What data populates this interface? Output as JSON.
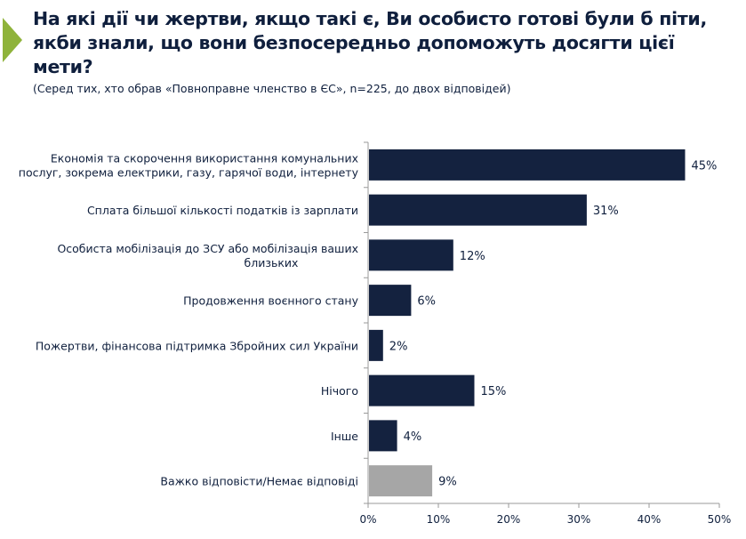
{
  "title": "На які дії чи жертви, якщо такі є, Ви особисто готові були б піти, якби знали, що вони безпосередньо допоможуть досягти цієї мети?",
  "subtitle": "(Серед тих, хто обрав «Повноправне членство в ЄС», n=225, до двох відповідей)",
  "chart_data": {
    "type": "bar",
    "orientation": "horizontal",
    "title": "На які дії чи жертви, якщо такі є, Ви особисто готові були б піти, якби знали, що вони безпосередньо допоможуть досягти цієї мети?",
    "categories": [
      [
        "Економія та скорочення використання комунальних",
        "послуг, зокрема електрики, газу, гарячої води, інтернету"
      ],
      [
        "Сплата більшої кількості податків із зарплати"
      ],
      [
        "Особиста мобілізація до ЗСУ або мобілізація ваших",
        "близьких"
      ],
      [
        "Продовження воєнного стану"
      ],
      [
        "Пожертви, фінансова підтримка Збройних сил України"
      ],
      [
        "Нічого"
      ],
      [
        "Інше"
      ],
      [
        "Важко відповісти/Немає відповіді"
      ]
    ],
    "values": [
      45,
      31,
      12,
      6,
      2,
      15,
      4,
      9
    ],
    "labels": [
      "45%",
      "31%",
      "12%",
      "6%",
      "2%",
      "15%",
      "4%",
      "9%"
    ],
    "colors": [
      "#14223f",
      "#14223f",
      "#14223f",
      "#14223f",
      "#14223f",
      "#14223f",
      "#14223f",
      "#a6a6a6"
    ],
    "xlim": [
      0,
      50
    ],
    "xticks": [
      "0%",
      "10%",
      "20%",
      "30%",
      "40%",
      "50%"
    ],
    "grid": false
  }
}
